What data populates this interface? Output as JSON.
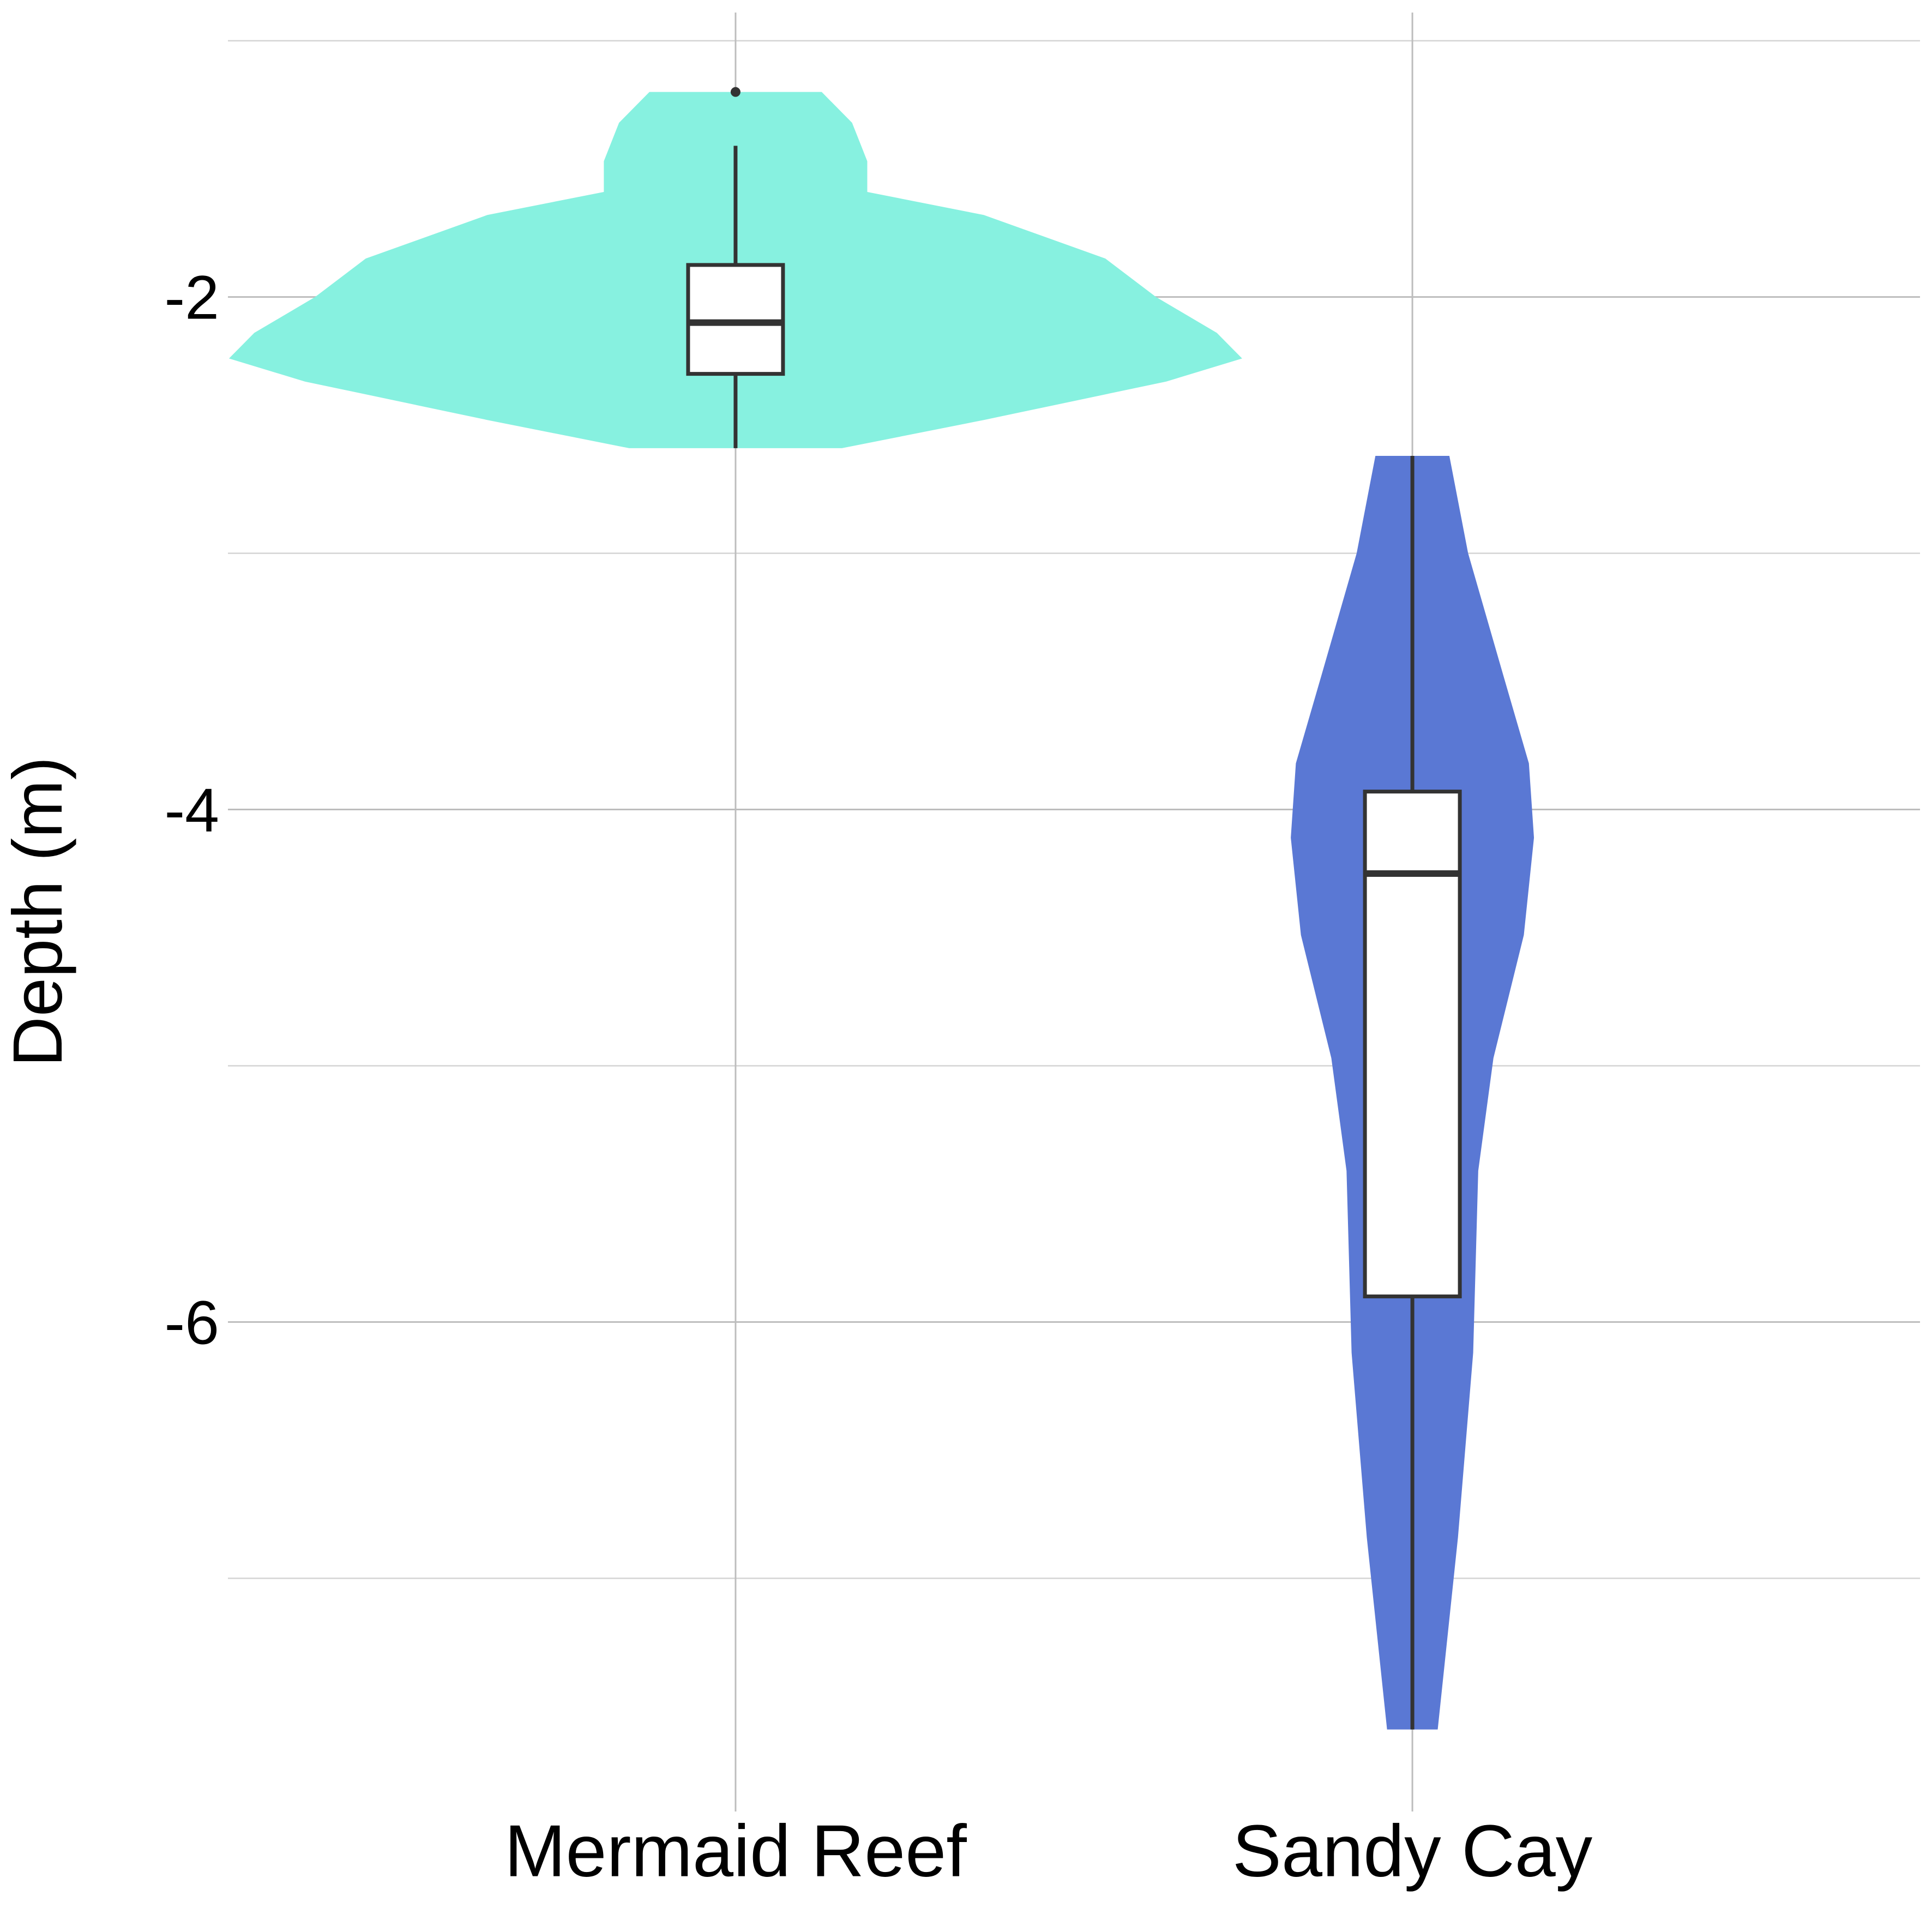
{
  "chart_data": {
    "type": "violin",
    "y_label": "Depth (m)",
    "categories": [
      "Mermaid Reef",
      "Sandy Cay"
    ],
    "series": [
      {
        "name": "Mermaid Reef",
        "color": "#87f1e0",
        "violin": {
          "y": [
            -1.2,
            -1.32,
            -1.47,
            -1.59,
            -1.68,
            -1.85,
            -2.0,
            -2.14,
            -2.24,
            -2.33,
            -2.48,
            -2.59
          ],
          "width": [
            0.17,
            0.23,
            0.26,
            0.26,
            0.49,
            0.73,
            0.83,
            0.95,
            1.0,
            0.85,
            0.49,
            0.21
          ]
        },
        "box": {
          "whisker_low": -2.59,
          "q1": -2.3,
          "median": -2.1,
          "q3": -1.875,
          "whisker_high": -1.41
        },
        "outliers": [
          -1.2
        ]
      },
      {
        "name": "Sandy Cay",
        "color": "#5a78d4",
        "violin": {
          "y": [
            -2.62,
            -3.0,
            -3.48,
            -3.82,
            -4.11,
            -4.49,
            -4.97,
            -5.41,
            -6.12,
            -6.84,
            -7.59
          ],
          "width": [
            0.073,
            0.11,
            0.18,
            0.23,
            0.24,
            0.22,
            0.16,
            0.13,
            0.12,
            0.09,
            0.05
          ]
        },
        "box": {
          "whisker_low": -7.59,
          "q1": -5.9,
          "median": -4.25,
          "q3": -3.93,
          "whisker_high": -2.62
        },
        "outliers": []
      }
    ],
    "ylim": [
      -7.91,
      -0.89
    ],
    "yticks": [
      -2,
      -4,
      -6
    ],
    "yticks_minor": [
      -1,
      -3,
      -5,
      -7
    ],
    "grid": true
  }
}
